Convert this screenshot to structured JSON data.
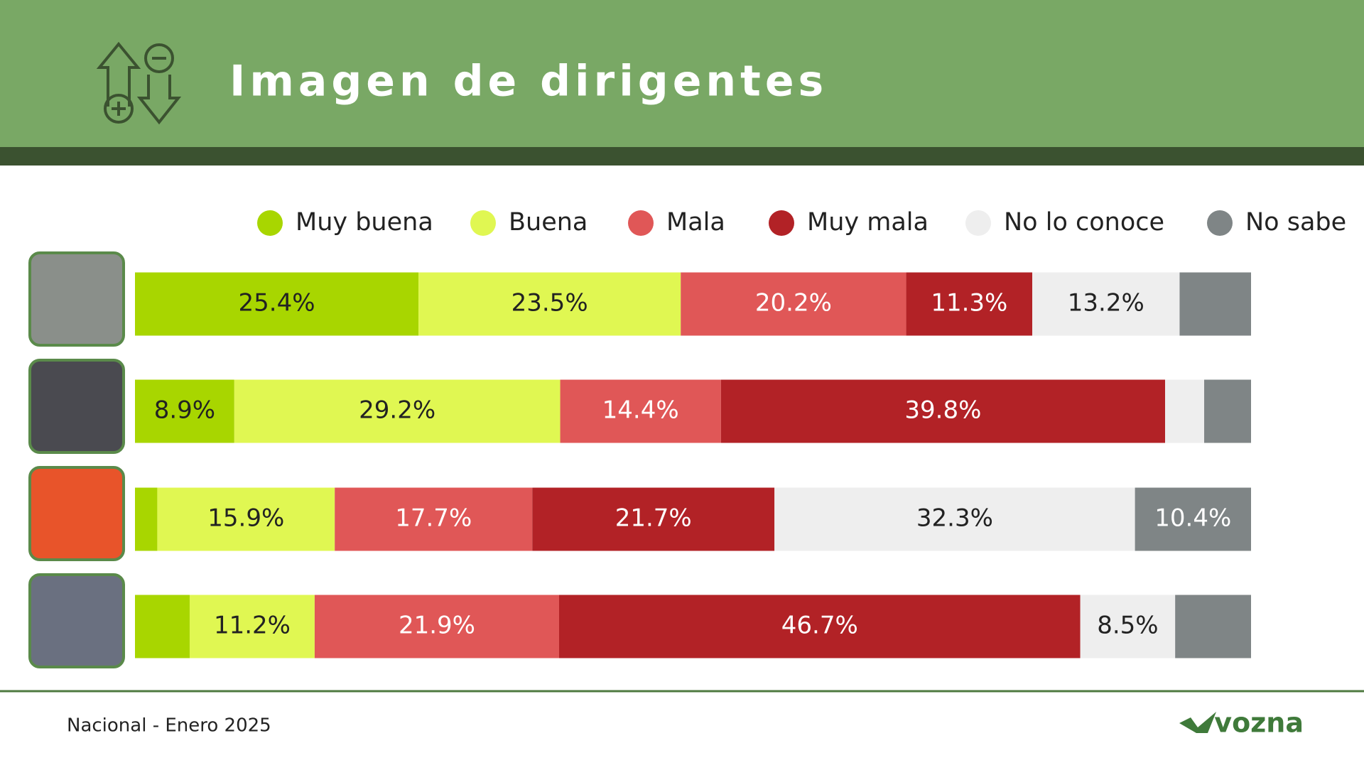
{
  "header": {
    "title": "Imagen de dirigentes"
  },
  "chart_data": {
    "type": "stacked-bar-horizontal",
    "orientation": "horizontal",
    "stacked": true,
    "xlim": [
      0,
      100
    ],
    "series": [
      {
        "name": "Muy buena",
        "color": "#a8d600",
        "values": [
          25.4,
          8.9,
          2.0,
          4.9
        ],
        "value_labels": [
          "25.4%",
          "8.9%",
          null,
          null
        ]
      },
      {
        "name": "Buena",
        "color": "#e0f752",
        "values": [
          23.5,
          29.2,
          15.9,
          11.2
        ],
        "value_labels": [
          "23.5%",
          "29.2%",
          "15.9%",
          "11.2%"
        ]
      },
      {
        "name": "Mala",
        "color": "#e05757",
        "values": [
          20.2,
          14.4,
          17.7,
          21.9
        ],
        "value_labels": [
          "20.2%",
          "14.4%",
          "17.7%",
          "21.9%"
        ]
      },
      {
        "name": "Muy mala",
        "color": "#b22226",
        "values": [
          11.3,
          39.8,
          21.7,
          46.7
        ],
        "value_labels": [
          "11.3%",
          "39.8%",
          "21.7%",
          "46.7%"
        ]
      },
      {
        "name": "No lo conoce",
        "color": "#eeeeee",
        "values": [
          13.2,
          3.5,
          32.3,
          8.5
        ],
        "value_labels": [
          "13.2%",
          null,
          "32.3%",
          "8.5%"
        ]
      },
      {
        "name": "No sabe",
        "color": "#7f8586",
        "values": [
          6.4,
          4.2,
          10.4,
          6.8
        ],
        "value_labels": [
          null,
          null,
          "10.4%",
          null
        ]
      }
    ]
  },
  "footer": {
    "source": "Nacional - Enero 2025",
    "logo": "vozna"
  }
}
